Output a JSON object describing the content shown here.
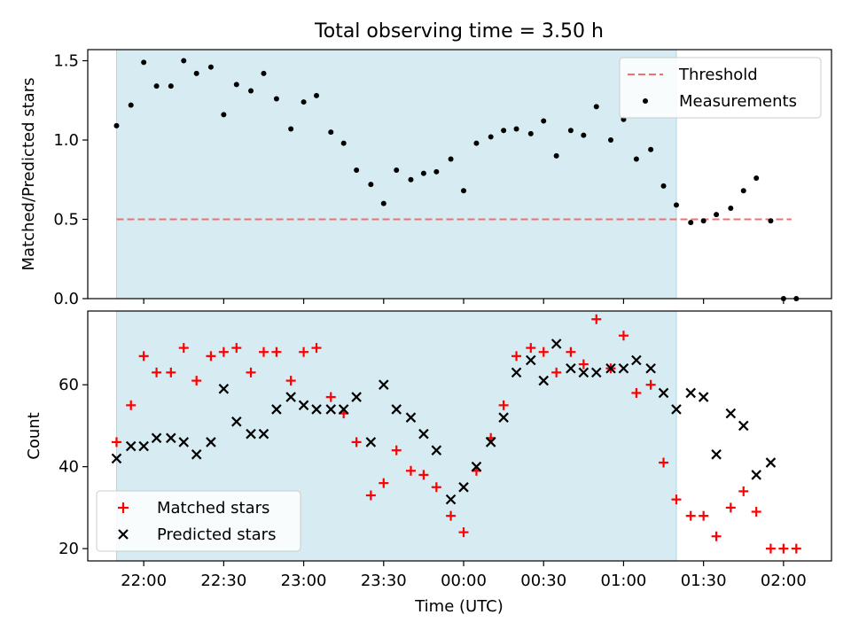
{
  "chart_data": {
    "type": "scatter",
    "title": "Total observing time = 3.50 h",
    "xlabel": "Time (UTC)",
    "x_tick_labels": [
      "22:00",
      "22:30",
      "23:00",
      "23:30",
      "00:00",
      "00:30",
      "01:00",
      "01:30",
      "02:00"
    ],
    "x_tick_hours": [
      22.0,
      22.5,
      23.0,
      23.5,
      24.0,
      24.5,
      25.0,
      25.5,
      26.0
    ],
    "xlim_hours": [
      21.65,
      26.3
    ],
    "shaded_interval_hours": [
      21.83,
      25.33
    ],
    "shade_color": "#add8e6",
    "panels": [
      {
        "ylabel": "Matched/Predicted stars",
        "ylim": [
          0,
          1.57
        ],
        "y_ticks": [
          0.0,
          0.5,
          1.0,
          1.5
        ],
        "y_tick_labels": [
          "0.0",
          "0.5",
          "1.0",
          "1.5"
        ],
        "legend_position": "top-right",
        "threshold": {
          "name": "Threshold",
          "value": 0.5,
          "x_range_hours": [
            21.83,
            26.05
          ],
          "color": "#f07070"
        },
        "series": [
          {
            "name": "Measurements",
            "marker": "dot",
            "color": "#000000",
            "x": [
              21.83,
              21.92,
              22.0,
              22.08,
              22.17,
              22.25,
              22.33,
              22.42,
              22.5,
              22.58,
              22.67,
              22.75,
              22.83,
              22.92,
              23.0,
              23.08,
              23.17,
              23.25,
              23.33,
              23.42,
              23.5,
              23.58,
              23.67,
              23.75,
              23.83,
              23.92,
              24.0,
              24.08,
              24.17,
              24.25,
              24.33,
              24.42,
              24.5,
              24.58,
              24.67,
              24.75,
              24.83,
              24.92,
              25.0,
              25.08,
              25.17,
              25.25,
              25.33,
              25.42,
              25.5,
              25.58,
              25.67,
              25.75,
              25.83,
              25.92,
              26.0,
              26.08
            ],
            "y": [
              1.09,
              1.22,
              1.49,
              1.34,
              1.34,
              1.5,
              1.42,
              1.46,
              1.16,
              1.35,
              1.31,
              1.42,
              1.26,
              1.07,
              1.24,
              1.28,
              1.05,
              0.98,
              0.81,
              0.72,
              0.6,
              0.81,
              0.75,
              0.79,
              0.8,
              0.88,
              0.68,
              0.98,
              1.02,
              1.06,
              1.07,
              1.04,
              1.12,
              0.9,
              1.06,
              1.03,
              1.21,
              1.0,
              1.13,
              0.88,
              0.94,
              0.71,
              0.59,
              0.48,
              0.49,
              0.53,
              0.57,
              0.68,
              0.76,
              0.49,
              0.0,
              0.0
            ]
          }
        ]
      },
      {
        "ylabel": "Count",
        "ylim": [
          17,
          78
        ],
        "y_ticks": [
          20,
          40,
          60
        ],
        "y_tick_labels": [
          "20",
          "40",
          "60"
        ],
        "legend_position": "lower-left",
        "series": [
          {
            "name": "Matched stars",
            "marker": "plus",
            "color": "#ff0000",
            "x": [
              21.83,
              21.92,
              22.0,
              22.08,
              22.17,
              22.25,
              22.33,
              22.42,
              22.5,
              22.58,
              22.67,
              22.75,
              22.83,
              22.92,
              23.0,
              23.08,
              23.17,
              23.25,
              23.33,
              23.42,
              23.5,
              23.58,
              23.67,
              23.75,
              23.83,
              23.92,
              24.0,
              24.08,
              24.17,
              24.25,
              24.33,
              24.42,
              24.5,
              24.58,
              24.67,
              24.75,
              24.83,
              24.92,
              25.0,
              25.08,
              25.17,
              25.25,
              25.33,
              25.42,
              25.5,
              25.58,
              25.67,
              25.75,
              25.83,
              25.92,
              26.0,
              26.08
            ],
            "y": [
              46,
              55,
              67,
              63,
              63,
              69,
              61,
              67,
              68,
              69,
              63,
              68,
              68,
              61,
              68,
              69,
              57,
              53,
              46,
              33,
              36,
              44,
              39,
              38,
              35,
              28,
              24,
              39,
              47,
              55,
              67,
              69,
              68,
              63,
              68,
              65,
              76,
              64,
              72,
              58,
              60,
              41,
              32,
              28,
              28,
              23,
              30,
              34,
              29,
              20,
              20,
              20
            ]
          },
          {
            "name": "Predicted stars",
            "marker": "x",
            "color": "#000000",
            "x": [
              21.83,
              21.92,
              22.0,
              22.08,
              22.17,
              22.25,
              22.33,
              22.42,
              22.5,
              22.58,
              22.67,
              22.75,
              22.83,
              22.92,
              23.0,
              23.08,
              23.17,
              23.25,
              23.33,
              23.42,
              23.5,
              23.58,
              23.67,
              23.75,
              23.83,
              23.92,
              24.0,
              24.08,
              24.17,
              24.25,
              24.33,
              24.42,
              24.5,
              24.58,
              24.67,
              24.75,
              24.83,
              24.92,
              25.0,
              25.08,
              25.17,
              25.25,
              25.33,
              25.42,
              25.5,
              25.58,
              25.67,
              25.75,
              25.83,
              25.92
            ],
            "y": [
              42,
              45,
              45,
              47,
              47,
              46,
              43,
              46,
              59,
              51,
              48,
              48,
              54,
              57,
              55,
              54,
              54,
              54,
              57,
              46,
              60,
              54,
              52,
              48,
              44,
              32,
              35,
              40,
              46,
              52,
              63,
              66,
              61,
              70,
              64,
              63,
              63,
              64,
              64,
              66,
              64,
              58,
              54,
              58,
              57,
              43,
              53,
              50,
              38,
              41
            ]
          }
        ]
      }
    ]
  }
}
